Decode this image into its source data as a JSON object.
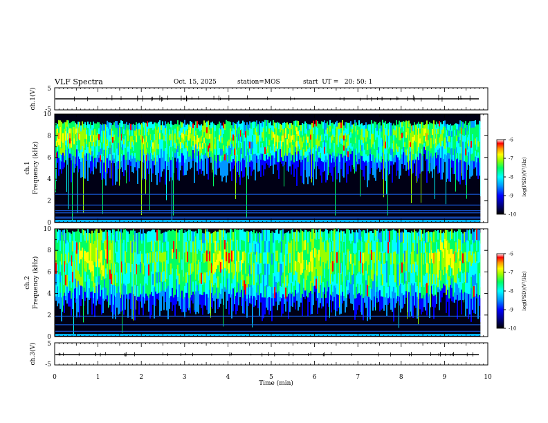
{
  "header": {
    "title": "VLF Spectra",
    "date": "Oct. 15, 2025",
    "station": "station=MOS",
    "start": "start  UT =   20: 50: 1"
  },
  "chart_data": [
    {
      "type": "line",
      "name": "ch1-waveform",
      "ylabel": "ch.1(V)",
      "ylim": [
        -5,
        5
      ],
      "yticks": [
        "5",
        "-5"
      ],
      "baseline": 0
    },
    {
      "type": "heatmap",
      "name": "ch1-spectrogram",
      "ylabel_line1": "ch.1",
      "ylabel_line2": "Frequency (kHz)",
      "ylim": [
        0,
        10
      ],
      "yticks": [
        "0",
        "2",
        "4",
        "6",
        "8",
        "10"
      ],
      "bands_khz": [
        [
          5.5,
          9.2
        ]
      ],
      "lines_khz": [
        0.4,
        0.5,
        0.9,
        1.1,
        1.6,
        2.6
      ],
      "colorbar": {
        "label": "log(PSD)(V²/Hz)",
        "range": [
          -10,
          -6
        ],
        "ticks": [
          "-6",
          "-7",
          "-8",
          "-9",
          "-10"
        ]
      }
    },
    {
      "type": "heatmap",
      "name": "ch2-spectrogram",
      "ylabel_line1": "ch.2",
      "ylabel_line2": "Frequency (kHz)",
      "ylim": [
        0,
        10
      ],
      "yticks": [
        "0",
        "2",
        "4",
        "6",
        "8",
        "10"
      ],
      "bands_khz": [
        [
          3.5,
          9.8
        ]
      ],
      "lines_khz": [
        0.5,
        1.1,
        1.9
      ],
      "colorbar": {
        "label": "log(PSD)(V²/Hz)",
        "range": [
          -10,
          -6
        ],
        "ticks": [
          "-6",
          "-7",
          "-8",
          "-9",
          "-10"
        ]
      }
    },
    {
      "type": "line",
      "name": "ch3-waveform",
      "ylabel": "ch.3(V)",
      "ylim": [
        -5,
        5
      ],
      "yticks": [
        "5",
        "-5"
      ],
      "baseline": 0
    }
  ],
  "x_axis": {
    "label": "Time  (min)",
    "range": [
      0,
      10
    ],
    "ticks": [
      "0",
      "1",
      "2",
      "3",
      "4",
      "5",
      "6",
      "7",
      "8",
      "9",
      "10"
    ],
    "data_end_min": 9.83
  },
  "palette": [
    "#000000",
    "#00004a",
    "#0000ff",
    "#0096ff",
    "#00ffff",
    "#00ff64",
    "#96ff00",
    "#ffff00",
    "#ff9600",
    "#ff0000",
    "#ffffff"
  ]
}
